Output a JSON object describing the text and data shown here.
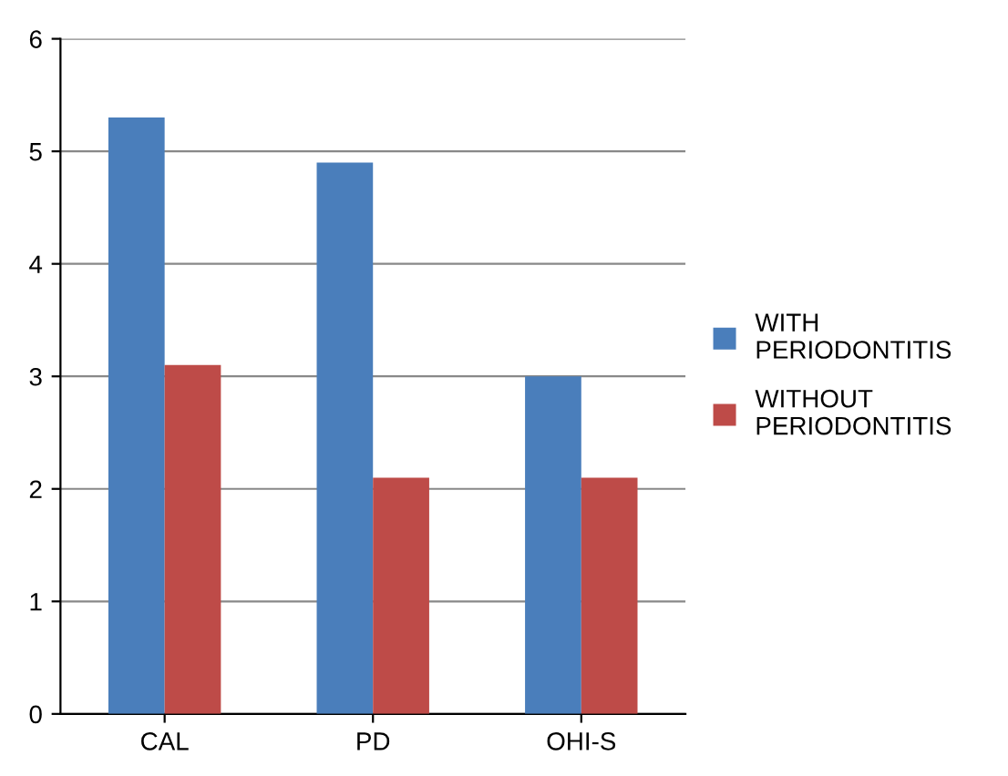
{
  "chart_data": {
    "type": "bar",
    "categories": [
      "CAL",
      "PD",
      "OHI-S"
    ],
    "series": [
      {
        "name": "WITH PERIODONTITIS",
        "color": "#4a7ebb",
        "values": [
          5.3,
          4.9,
          3.0
        ]
      },
      {
        "name": "WITHOUT PERIODONTITIS",
        "color": "#be4b48",
        "values": [
          3.1,
          2.1,
          2.1
        ]
      }
    ],
    "ylim": [
      0,
      6
    ],
    "yticks": [
      0,
      1,
      2,
      3,
      4,
      5,
      6
    ],
    "grid": "y",
    "legend": "right"
  }
}
